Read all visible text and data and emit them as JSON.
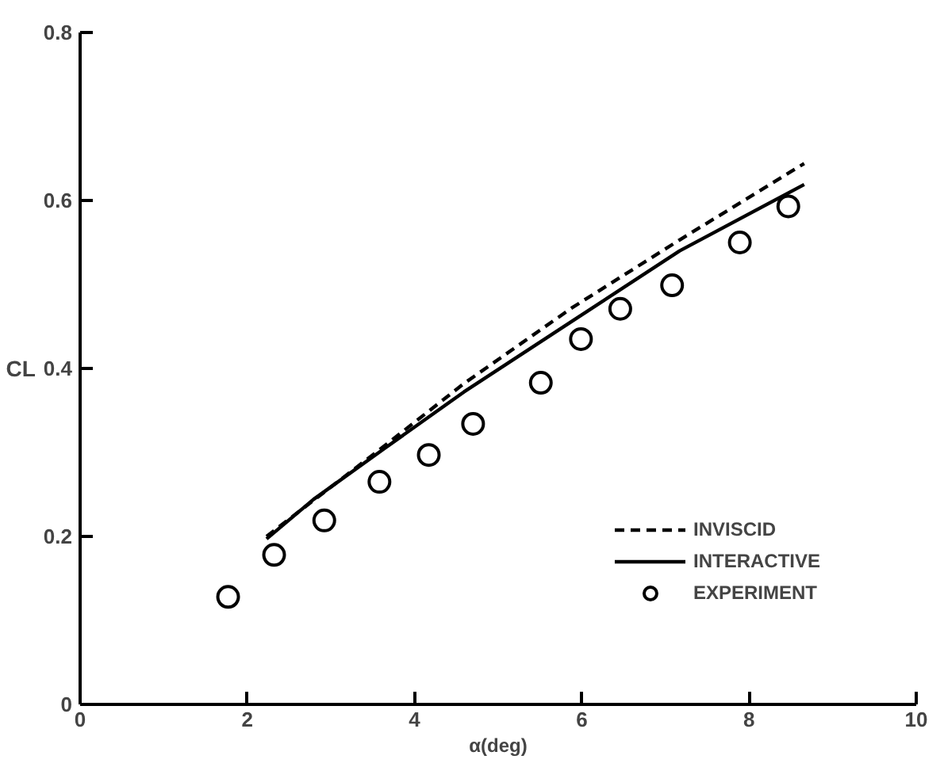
{
  "chart_data": {
    "type": "line",
    "xlabel": "α(deg)",
    "ylabel": "CL",
    "xlim": [
      0,
      10
    ],
    "ylim": [
      0,
      0.8
    ],
    "xticks": [
      0,
      2,
      4,
      6,
      8,
      10
    ],
    "yticks": [
      0,
      0.2,
      0.4,
      0.6,
      0.8
    ],
    "grid": false,
    "legend": "bottom right",
    "series": [
      {
        "name": "INVISCID",
        "color": "#000000",
        "line_style": "dashed",
        "marker": "none",
        "x": [
          2.23,
          3.63,
          4.59,
          5.88,
          7.17,
          8.66
        ],
        "values": [
          0.2,
          0.307,
          0.382,
          0.472,
          0.553,
          0.644
        ]
      },
      {
        "name": "INTERACTIVE",
        "color": "#000000",
        "line_style": "solid",
        "marker": "none",
        "x": [
          2.23,
          2.79,
          3.63,
          4.59,
          5.88,
          7.17,
          8.66
        ],
        "values": [
          0.197,
          0.244,
          0.304,
          0.372,
          0.456,
          0.54,
          0.619
        ]
      },
      {
        "name": "EXPERIMENT",
        "type": "scatter",
        "color": "#000000",
        "marker": "circle",
        "x": [
          1.77,
          2.32,
          2.92,
          3.58,
          4.17,
          4.7,
          5.51,
          5.99,
          6.46,
          7.08,
          7.89,
          8.47
        ],
        "values": [
          0.128,
          0.178,
          0.219,
          0.265,
          0.297,
          0.334,
          0.383,
          0.435,
          0.471,
          0.499,
          0.55,
          0.593
        ]
      }
    ]
  }
}
